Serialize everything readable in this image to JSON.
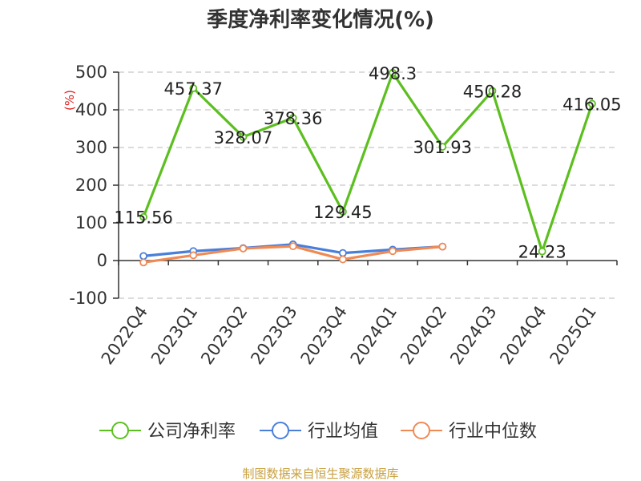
{
  "chart_data": {
    "type": "line",
    "title": "季度净利率变化情况(%)",
    "ylabel": "(%)",
    "xlabel": "",
    "categories": [
      "2022Q4",
      "2023Q1",
      "2023Q2",
      "2023Q3",
      "2023Q4",
      "2024Q1",
      "2024Q2",
      "2024Q3",
      "2024Q4",
      "2025Q1"
    ],
    "ylim": [
      -100,
      500
    ],
    "yticks": [
      -100,
      0,
      100,
      200,
      300,
      400,
      500
    ],
    "grid": true,
    "legend_position": "bottom",
    "series": [
      {
        "name": "公司净利率",
        "color": "#5cbf1f",
        "values": [
          115.56,
          457.37,
          328.07,
          378.36,
          129.45,
          498.3,
          301.93,
          450.28,
          24.23,
          416.05
        ],
        "labels": [
          "115.56",
          "457.37",
          "328.07",
          "378.36",
          "129.45",
          "498.3",
          "301.93",
          "450.28",
          "24.23",
          "416.05"
        ]
      },
      {
        "name": "行业均值",
        "color": "#4a7fd9",
        "values": [
          12,
          25,
          33,
          43,
          20,
          29,
          37,
          null,
          null,
          null
        ]
      },
      {
        "name": "行业中位数",
        "color": "#f08a55",
        "values": [
          -5,
          14,
          32,
          38,
          3,
          25,
          37,
          null,
          null,
          null
        ]
      }
    ]
  },
  "footer": {
    "source": "制图数据来自恒生聚源数据库"
  }
}
